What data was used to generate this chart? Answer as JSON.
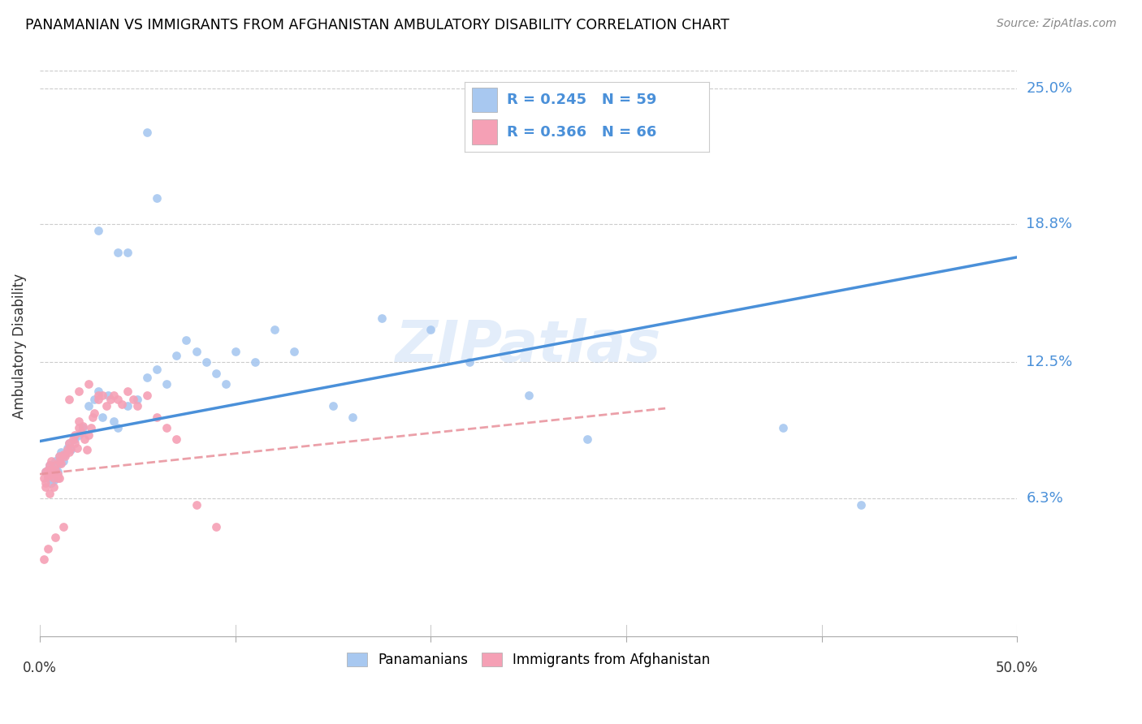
{
  "title": "PANAMANIAN VS IMMIGRANTS FROM AFGHANISTAN AMBULATORY DISABILITY CORRELATION CHART",
  "source": "Source: ZipAtlas.com",
  "ylabel": "Ambulatory Disability",
  "ytick_labels": [
    "6.3%",
    "12.5%",
    "18.8%",
    "25.0%"
  ],
  "ytick_values": [
    0.063,
    0.125,
    0.188,
    0.25
  ],
  "xmin": 0.0,
  "xmax": 0.5,
  "ymin": 0.0,
  "ymax": 0.265,
  "color_blue": "#a8c8f0",
  "color_pink": "#f5a0b5",
  "line_blue": "#4a90d9",
  "line_pink": "#e8909a",
  "watermark": "ZIPatlas",
  "blue_x": [
    0.003,
    0.004,
    0.004,
    0.005,
    0.005,
    0.006,
    0.006,
    0.007,
    0.007,
    0.008,
    0.008,
    0.009,
    0.01,
    0.01,
    0.011,
    0.012,
    0.013,
    0.014,
    0.015,
    0.016,
    0.018,
    0.02,
    0.022,
    0.025,
    0.028,
    0.03,
    0.032,
    0.035,
    0.038,
    0.04,
    0.045,
    0.05,
    0.055,
    0.06,
    0.065,
    0.07,
    0.075,
    0.08,
    0.085,
    0.09,
    0.095,
    0.1,
    0.11,
    0.12,
    0.13,
    0.15,
    0.16,
    0.175,
    0.2,
    0.22,
    0.25,
    0.28,
    0.38,
    0.42,
    0.055,
    0.06,
    0.04,
    0.03,
    0.045
  ],
  "blue_y": [
    0.075,
    0.072,
    0.076,
    0.074,
    0.078,
    0.07,
    0.073,
    0.075,
    0.071,
    0.08,
    0.077,
    0.075,
    0.082,
    0.079,
    0.084,
    0.08,
    0.083,
    0.086,
    0.088,
    0.085,
    0.09,
    0.092,
    0.095,
    0.105,
    0.108,
    0.112,
    0.1,
    0.11,
    0.098,
    0.095,
    0.105,
    0.108,
    0.118,
    0.122,
    0.115,
    0.128,
    0.135,
    0.13,
    0.125,
    0.12,
    0.115,
    0.13,
    0.125,
    0.14,
    0.13,
    0.105,
    0.1,
    0.145,
    0.14,
    0.125,
    0.11,
    0.09,
    0.095,
    0.06,
    0.23,
    0.2,
    0.175,
    0.185,
    0.175
  ],
  "pink_x": [
    0.002,
    0.003,
    0.003,
    0.004,
    0.004,
    0.005,
    0.005,
    0.006,
    0.006,
    0.007,
    0.007,
    0.008,
    0.008,
    0.009,
    0.009,
    0.01,
    0.01,
    0.011,
    0.012,
    0.013,
    0.014,
    0.015,
    0.015,
    0.016,
    0.017,
    0.018,
    0.018,
    0.019,
    0.02,
    0.02,
    0.021,
    0.022,
    0.023,
    0.024,
    0.025,
    0.026,
    0.027,
    0.028,
    0.03,
    0.032,
    0.034,
    0.036,
    0.038,
    0.04,
    0.042,
    0.045,
    0.048,
    0.05,
    0.055,
    0.06,
    0.065,
    0.07,
    0.08,
    0.09,
    0.003,
    0.005,
    0.007,
    0.01,
    0.015,
    0.02,
    0.025,
    0.03,
    0.002,
    0.004,
    0.008,
    0.012
  ],
  "pink_y": [
    0.072,
    0.075,
    0.07,
    0.073,
    0.076,
    0.074,
    0.078,
    0.076,
    0.08,
    0.074,
    0.072,
    0.078,
    0.076,
    0.074,
    0.072,
    0.08,
    0.082,
    0.079,
    0.083,
    0.082,
    0.085,
    0.084,
    0.088,
    0.086,
    0.09,
    0.092,
    0.088,
    0.086,
    0.095,
    0.098,
    0.093,
    0.096,
    0.09,
    0.085,
    0.092,
    0.095,
    0.1,
    0.102,
    0.108,
    0.11,
    0.105,
    0.108,
    0.11,
    0.108,
    0.106,
    0.112,
    0.108,
    0.105,
    0.11,
    0.1,
    0.095,
    0.09,
    0.06,
    0.05,
    0.068,
    0.065,
    0.068,
    0.072,
    0.108,
    0.112,
    0.115,
    0.11,
    0.035,
    0.04,
    0.045,
    0.05
  ],
  "blue_line_x0": 0.0,
  "blue_line_y0": 0.089,
  "blue_line_x1": 0.5,
  "blue_line_y1": 0.173,
  "pink_line_x0": 0.0,
  "pink_line_y0": 0.074,
  "pink_line_x1": 0.32,
  "pink_line_y1": 0.104
}
